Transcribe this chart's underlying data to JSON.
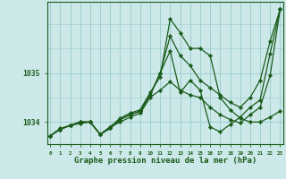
{
  "background_color": "#cce8e8",
  "plot_bg_color": "#cce8e8",
  "grid_color": "#99cccc",
  "line_color": "#1a5c1a",
  "marker_color": "#1a5c1a",
  "xlabel": "Graphe pression niveau de la mer (hPa)",
  "xlabel_fontsize": 6.5,
  "xtick_labels": [
    "0",
    "1",
    "2",
    "3",
    "4",
    "5",
    "6",
    "7",
    "8",
    "9",
    "10",
    "11",
    "12",
    "13",
    "14",
    "15",
    "16",
    "17",
    "18",
    "19",
    "20",
    "21",
    "22",
    "23"
  ],
  "ytick_labels": [
    "1034",
    "1035"
  ],
  "ytick_vals": [
    1034.0,
    1035.0
  ],
  "ylim": [
    1033.55,
    1036.45
  ],
  "xlim": [
    -0.3,
    23.3
  ],
  "series": [
    [
      1033.72,
      1033.85,
      1033.93,
      1034.0,
      1034.0,
      1033.75,
      1033.87,
      1034.05,
      1034.15,
      1034.22,
      1034.55,
      1035.0,
      1035.45,
      1034.6,
      1034.85,
      1034.65,
      1033.9,
      1033.8,
      1033.95,
      1034.1,
      1034.3,
      1034.45,
      1035.4,
      1036.3
    ],
    [
      1033.72,
      1033.85,
      1033.93,
      1034.0,
      1034.0,
      1033.75,
      1033.87,
      1034.05,
      1034.15,
      1034.22,
      1034.55,
      1035.0,
      1035.75,
      1035.35,
      1035.15,
      1034.85,
      1034.7,
      1034.55,
      1034.4,
      1034.3,
      1034.5,
      1034.85,
      1035.65,
      1036.3
    ],
    [
      1033.72,
      1033.87,
      1033.93,
      1033.97,
      1034.0,
      1033.75,
      1033.9,
      1034.0,
      1034.1,
      1034.18,
      1034.5,
      1034.65,
      1034.82,
      1034.65,
      1034.55,
      1034.5,
      1034.3,
      1034.15,
      1034.05,
      1033.98,
      1034.15,
      1034.3,
      1034.95,
      1036.3
    ],
    [
      1033.72,
      1033.85,
      1033.93,
      1034.0,
      1034.0,
      1033.75,
      1033.9,
      1034.08,
      1034.18,
      1034.25,
      1034.6,
      1034.92,
      1036.1,
      1035.82,
      1035.5,
      1035.5,
      1035.35,
      1034.5,
      1034.25,
      1034.08,
      1034.0,
      1034.0,
      1034.1,
      1034.22
    ]
  ]
}
